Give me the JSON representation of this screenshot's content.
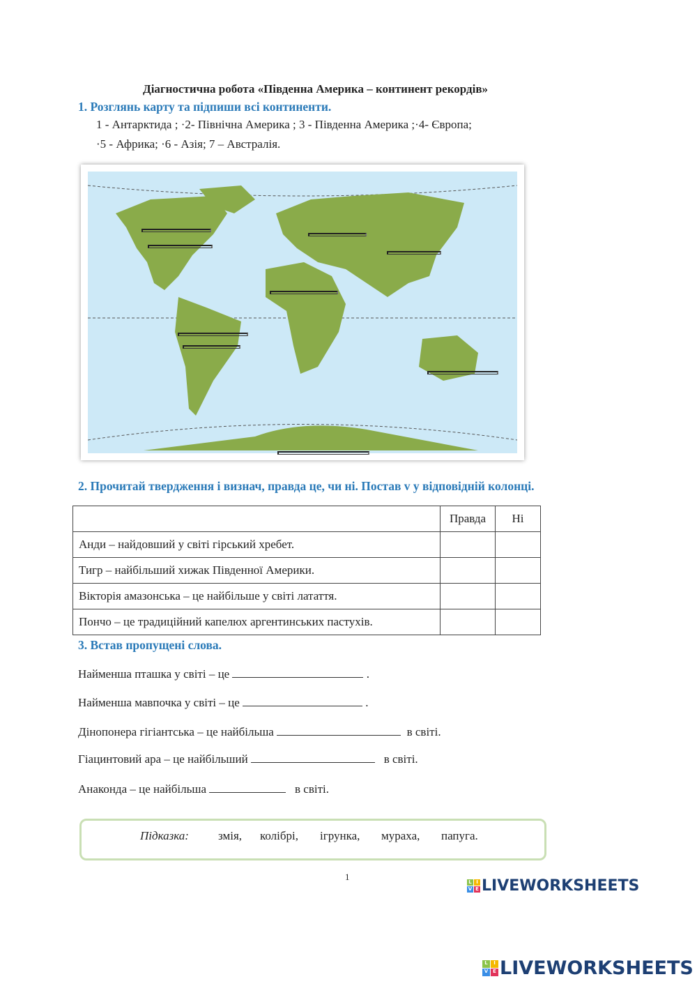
{
  "title": "Діагностична робота «Південна Америка – континент рекордів»",
  "task1": {
    "heading": "1.  Розглянь карту та підпиши всі континенти.",
    "line1": "1 -  Антарктида ; ·2-  Північна Америка ; 3 - Південна Америка ;·4-  Європа;",
    "line2": "·5 -  Африка; ·6 -  Азія; 7 – Австралія."
  },
  "map": {
    "ocean_color": "#cde9f7",
    "land_color": "#8aab4a"
  },
  "task2": {
    "heading": "2.  Прочитай твердження і визнач, правда це, чи ні. Постав v у відповідній колонці.",
    "columns": [
      "",
      "Правда",
      "Ні"
    ],
    "rows": [
      "Анди – найдовший у світі гірський хребет.",
      "Тигр – найбільший хижак Південної Америки.",
      "Вікторія амазонська – це найбільше у світі латаття.",
      "Пончо – це традиційний капелюх аргентинських пастухів."
    ]
  },
  "task3": {
    "heading": "3.  Встав пропущені слова.",
    "items": [
      {
        "before": "Найменша пташка у світі – це",
        "after": "."
      },
      {
        "before": "Найменша мавпочка у світі – це",
        "after": "."
      },
      {
        "before": "Дінопонера гігіантська – це найбільша",
        "after": "в світі."
      },
      {
        "before": "Гіацинтовий ара – це найбільший",
        "after": "в світі."
      },
      {
        "before": "Анаконда – це найбільша",
        "after": "в світі."
      }
    ],
    "hint_label": "Підказка:",
    "hint_words": [
      "змія,",
      "колібрі,",
      "ігрунка,",
      "мураха,",
      "папуга."
    ]
  },
  "page_number": "1",
  "logo_text": "LIVEWORKSHEETS"
}
